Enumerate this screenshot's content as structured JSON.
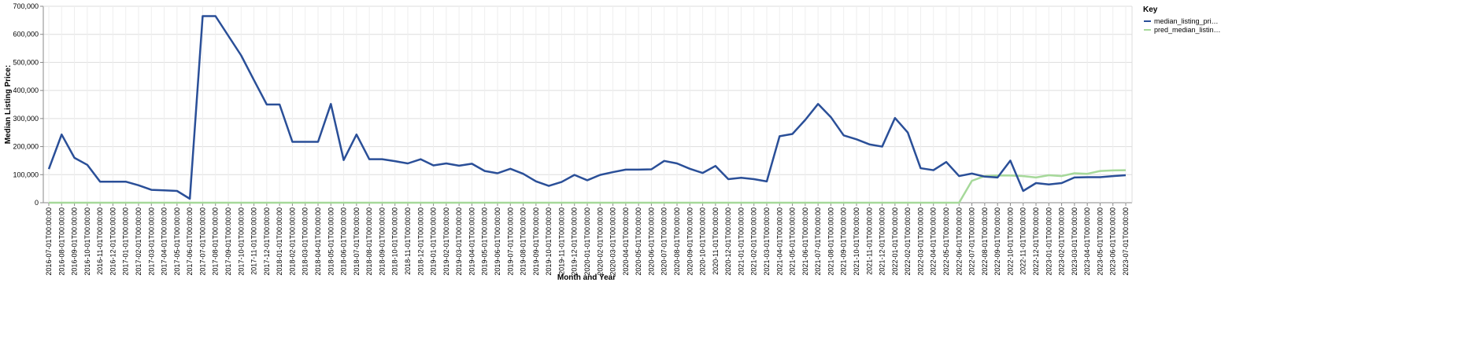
{
  "chart_data": {
    "type": "line",
    "xlabel": "Month and Year",
    "ylabel": "Median Listing Price:",
    "legend_title": "Key",
    "legend": "top-right",
    "grid": true,
    "categories": [
      "2016-07-01T00:00:00",
      "2016-08-01T00:00:00",
      "2016-09-01T00:00:00",
      "2016-10-01T00:00:00",
      "2016-11-01T00:00:00",
      "2016-12-01T00:00:00",
      "2017-01-01T00:00:00",
      "2017-02-01T00:00:00",
      "2017-03-01T00:00:00",
      "2017-04-01T00:00:00",
      "2017-05-01T00:00:00",
      "2017-06-01T00:00:00",
      "2017-07-01T00:00:00",
      "2017-08-01T00:00:00",
      "2017-09-01T00:00:00",
      "2017-10-01T00:00:00",
      "2017-11-01T00:00:00",
      "2017-12-01T00:00:00",
      "2018-01-01T00:00:00",
      "2018-02-01T00:00:00",
      "2018-03-01T00:00:00",
      "2018-04-01T00:00:00",
      "2018-05-01T00:00:00",
      "2018-06-01T00:00:00",
      "2018-07-01T00:00:00",
      "2018-08-01T00:00:00",
      "2018-09-01T00:00:00",
      "2018-10-01T00:00:00",
      "2018-11-01T00:00:00",
      "2018-12-01T00:00:00",
      "2019-01-01T00:00:00",
      "2019-02-01T00:00:00",
      "2019-03-01T00:00:00",
      "2019-04-01T00:00:00",
      "2019-05-01T00:00:00",
      "2019-06-01T00:00:00",
      "2019-07-01T00:00:00",
      "2019-08-01T00:00:00",
      "2019-09-01T00:00:00",
      "2019-10-01T00:00:00",
      "2019-11-01T00:00:00",
      "2019-12-01T00:00:00",
      "2020-01-01T00:00:00",
      "2020-02-01T00:00:00",
      "2020-03-01T00:00:00",
      "2020-04-01T00:00:00",
      "2020-05-01T00:00:00",
      "2020-06-01T00:00:00",
      "2020-07-01T00:00:00",
      "2020-08-01T00:00:00",
      "2020-09-01T00:00:00",
      "2020-10-01T00:00:00",
      "2020-11-01T00:00:00",
      "2020-12-01T00:00:00",
      "2021-01-01T00:00:00",
      "2021-02-01T00:00:00",
      "2021-03-01T00:00:00",
      "2021-04-01T00:00:00",
      "2021-05-01T00:00:00",
      "2021-06-01T00:00:00",
      "2021-07-01T00:00:00",
      "2021-08-01T00:00:00",
      "2021-09-01T00:00:00",
      "2021-10-01T00:00:00",
      "2021-11-01T00:00:00",
      "2021-12-01T00:00:00",
      "2022-01-01T00:00:00",
      "2022-02-01T00:00:00",
      "2022-03-01T00:00:00",
      "2022-04-01T00:00:00",
      "2022-05-01T00:00:00",
      "2022-06-01T00:00:00",
      "2022-07-01T00:00:00",
      "2022-08-01T00:00:00",
      "2022-09-01T00:00:00",
      "2022-10-01T00:00:00",
      "2022-11-01T00:00:00",
      "2022-12-01T00:00:00",
      "2023-01-01T00:00:00",
      "2023-02-01T00:00:00",
      "2023-03-01T00:00:00",
      "2023-04-01T00:00:00",
      "2023-05-01T00:00:00",
      "2023-06-01T00:00:00",
      "2023-07-01T00:00:00"
    ],
    "series": [
      {
        "name": "median_listing_pri…",
        "color": "#2a4f98",
        "values": [
          120000,
          243000,
          160000,
          135000,
          75000,
          75000,
          75000,
          62000,
          46000,
          44000,
          42000,
          14000,
          665000,
          665000,
          595000,
          525000,
          437000,
          350000,
          350000,
          217000,
          217000,
          217000,
          352000,
          152000,
          243000,
          155000,
          155000,
          148000,
          140000,
          155000,
          133000,
          140000,
          132000,
          139000,
          113000,
          105000,
          121000,
          103000,
          76000,
          60000,
          74000,
          99000,
          80000,
          99000,
          109000,
          118000,
          118000,
          119000,
          149000,
          140000,
          121000,
          106000,
          131000,
          84000,
          89000,
          84000,
          76000,
          237000,
          245000,
          295000,
          352000,
          305000,
          240000,
          226000,
          208000,
          200000,
          302000,
          250000,
          123000,
          116000,
          145000,
          95000,
          104000,
          93000,
          90000,
          150000,
          42000,
          70000,
          65000,
          70000,
          90000,
          91000,
          91000,
          95000,
          98000
        ]
      },
      {
        "name": "pred_median_listin…",
        "color": "#a6d99a",
        "values": [
          0,
          0,
          0,
          0,
          0,
          0,
          0,
          0,
          0,
          0,
          0,
          0,
          0,
          0,
          0,
          0,
          0,
          0,
          0,
          0,
          0,
          0,
          0,
          0,
          0,
          0,
          0,
          0,
          0,
          0,
          0,
          0,
          0,
          0,
          0,
          0,
          0,
          0,
          0,
          0,
          0,
          0,
          0,
          0,
          0,
          0,
          0,
          0,
          0,
          0,
          0,
          0,
          0,
          0,
          0,
          0,
          0,
          0,
          0,
          0,
          0,
          0,
          0,
          0,
          0,
          0,
          0,
          0,
          0,
          0,
          0,
          0,
          78000,
          95000,
          97000,
          97000,
          95000,
          90000,
          98000,
          95000,
          105000,
          103000,
          113000,
          115000,
          116000
        ]
      }
    ],
    "ylim": [
      0,
      700000
    ],
    "yticks": [
      0,
      {
        "value": 100000,
        "label": "100,000"
      },
      {
        "value": 200000,
        "label": "200,000"
      },
      {
        "value": 300000,
        "label": "300,000"
      },
      {
        "value": 400000,
        "label": "400,000"
      },
      {
        "value": 500000,
        "label": "500,000"
      },
      {
        "value": 600000,
        "label": "600,000"
      },
      {
        "value": 700000,
        "label": "700,000"
      }
    ]
  }
}
